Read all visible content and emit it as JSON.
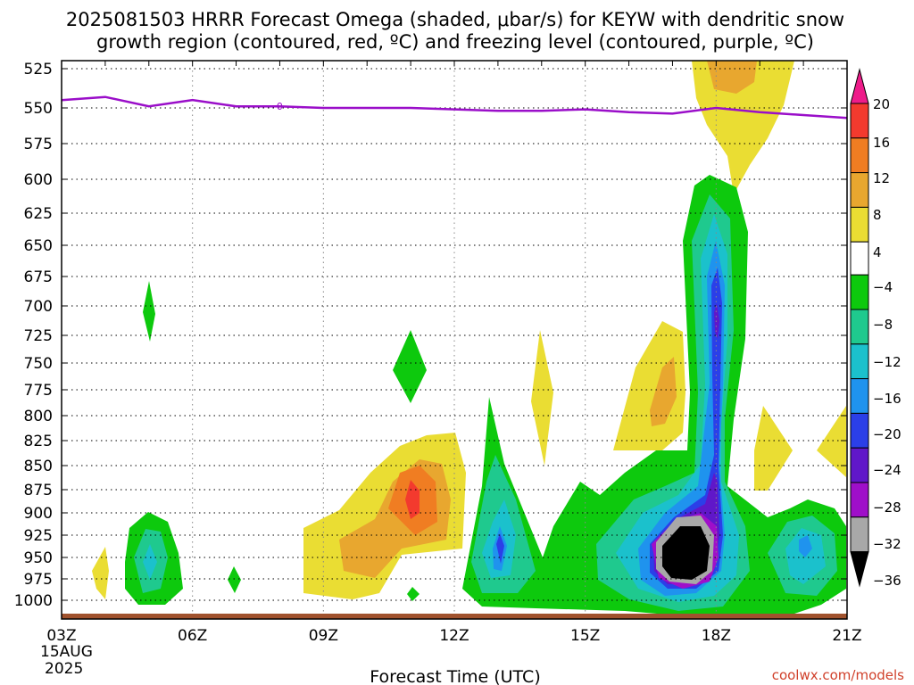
{
  "title_line1": "2025081503 HRRR Forecast Omega (shaded, μbar/s) for KEYW with dendritic snow",
  "title_line2": "growth region (contoured, red, ºC) and freezing level (contoured, purple, ºC)",
  "credit": "coolwx.com/models",
  "chart_data": {
    "type": "heatmap",
    "title": "2025081503 HRRR Forecast Omega (shaded, μbar/s) for KEYW with dendritic snow growth region (contoured, red, ºC) and freezing level (contoured, purple, ºC)",
    "xlabel": "Forecast Time (UTC)",
    "ylabel": "",
    "x_range_hours": [
      3,
      21
    ],
    "x_ticks": [
      {
        "hour": 3,
        "label": "03Z"
      },
      {
        "hour": 6,
        "label": "06Z"
      },
      {
        "hour": 9,
        "label": "09Z"
      },
      {
        "hour": 12,
        "label": "12Z"
      },
      {
        "hour": 15,
        "label": "15Z"
      },
      {
        "hour": 18,
        "label": "18Z"
      },
      {
        "hour": 21,
        "label": "21Z"
      }
    ],
    "x_date_label": [
      "15AUG",
      "2025"
    ],
    "y_range_hPa": [
      1010,
      515
    ],
    "y_ticks": [
      525,
      550,
      575,
      600,
      625,
      650,
      675,
      700,
      725,
      750,
      775,
      800,
      825,
      850,
      875,
      900,
      925,
      950,
      975,
      1000
    ],
    "grid": true,
    "colorbar": {
      "labels": [
        "20",
        "16",
        "12",
        "8",
        "4",
        "−4",
        "−8",
        "−12",
        "−16",
        "−20",
        "−24",
        "−28",
        "−32",
        "−36"
      ],
      "levels": [
        {
          "min": 20,
          "color": "#ee1c8a"
        },
        {
          "min": 16,
          "max": 20,
          "color": "#f33a2e"
        },
        {
          "min": 12,
          "max": 16,
          "color": "#f07d22"
        },
        {
          "min": 8,
          "max": 12,
          "color": "#e8a72f"
        },
        {
          "min": 4,
          "max": 8,
          "color": "#eadd33"
        },
        {
          "min": -4,
          "max": 4,
          "color": "#ffffff"
        },
        {
          "min": -8,
          "max": -4,
          "color": "#0dc90d"
        },
        {
          "min": -12,
          "max": -8,
          "color": "#1fc98e"
        },
        {
          "min": -16,
          "max": -12,
          "color": "#1bc1cc"
        },
        {
          "min": -20,
          "max": -16,
          "color": "#1f93ee"
        },
        {
          "min": -24,
          "max": -20,
          "color": "#2b3fe8"
        },
        {
          "min": -28,
          "max": -24,
          "color": "#6017c9"
        },
        {
          "min": -32,
          "max": -28,
          "color": "#9f0fc9"
        },
        {
          "min": -36,
          "max": -32,
          "color": "#a8a8a8"
        },
        {
          "max": -36,
          "color": "#000000"
        }
      ]
    },
    "omega_features": [
      {
        "hour": 17.0,
        "hPa": 940,
        "min": -40,
        "description": "strongest upward motion core"
      },
      {
        "hour": 18.0,
        "hPa": 700,
        "min": -22
      },
      {
        "hour": 13.0,
        "hPa": 945,
        "min": -22
      },
      {
        "hour": 5.0,
        "hPa": 950,
        "min": -18
      },
      {
        "hour": 20.0,
        "hPa": 945,
        "min": -14
      },
      {
        "hour": 11.0,
        "hPa": 885,
        "max": 18
      },
      {
        "hour": 17.0,
        "hPa": 785,
        "max": 10
      },
      {
        "hour": 18.2,
        "hPa": 535,
        "max": 10
      }
    ],
    "freezing_level": {
      "color": "#9a0ec9",
      "hours": [
        3,
        4,
        5,
        6,
        7,
        8,
        9,
        10,
        11,
        12,
        13,
        14,
        15,
        16,
        17,
        18,
        19,
        20,
        21
      ],
      "pressure_hPa": [
        545,
        543,
        549,
        545,
        549,
        549,
        550,
        550,
        550,
        551,
        552,
        552,
        551,
        553,
        554,
        550,
        553,
        555,
        557
      ],
      "label": "0"
    },
    "surface_color": "#a0522d"
  }
}
